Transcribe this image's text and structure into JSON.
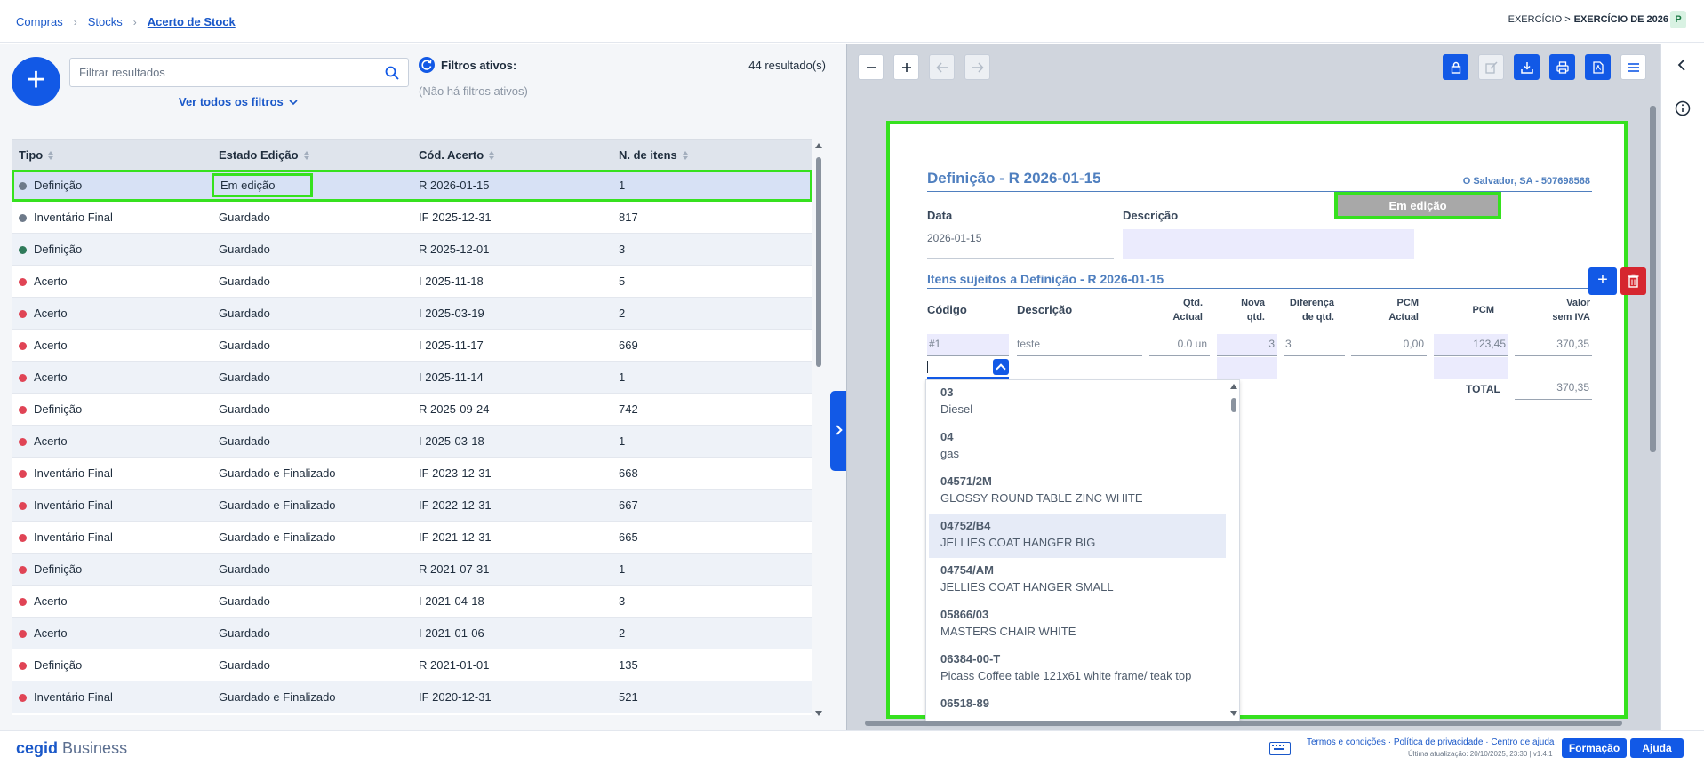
{
  "breadcrumb": {
    "items": [
      "Compras",
      "Stocks"
    ],
    "current": "Acerto de Stock"
  },
  "exercise": {
    "prefix": "EXERCÍCIO >",
    "value": "EXERCÍCIO DE 2026",
    "badge": "P"
  },
  "list": {
    "new_button": "+",
    "search_placeholder": "Filtrar resultados",
    "all_filters_label": "Ver todos os filtros",
    "active_filters_title": "Filtros ativos:",
    "no_filters_text": "(Não há filtros ativos)",
    "results_count": "44 resultado(s)",
    "columns": [
      "Tipo",
      "Estado Edição",
      "Cód. Acerto",
      "N. de itens"
    ],
    "rows": [
      {
        "tipo": "Definição",
        "estado": "Em edição",
        "cod": "R 2026-01-15",
        "n": "1",
        "dot": "#6e7a8a",
        "selected": true
      },
      {
        "tipo": "Inventário Final",
        "estado": "Guardado",
        "cod": "IF 2025-12-31",
        "n": "817",
        "dot": "#6e7a8a"
      },
      {
        "tipo": "Definição",
        "estado": "Guardado",
        "cod": "R 2025-12-01",
        "n": "3",
        "dot": "#2f7a5a"
      },
      {
        "tipo": "Acerto",
        "estado": "Guardado",
        "cod": "I 2025-11-18",
        "n": "5",
        "dot": "#e04455"
      },
      {
        "tipo": "Acerto",
        "estado": "Guardado",
        "cod": "I 2025-03-19",
        "n": "2",
        "dot": "#e04455"
      },
      {
        "tipo": "Acerto",
        "estado": "Guardado",
        "cod": "I 2025-11-17",
        "n": "669",
        "dot": "#e04455"
      },
      {
        "tipo": "Acerto",
        "estado": "Guardado",
        "cod": "I 2025-11-14",
        "n": "1",
        "dot": "#e04455"
      },
      {
        "tipo": "Definição",
        "estado": "Guardado",
        "cod": "R 2025-09-24",
        "n": "742",
        "dot": "#e04455"
      },
      {
        "tipo": "Acerto",
        "estado": "Guardado",
        "cod": "I 2025-03-18",
        "n": "1",
        "dot": "#e04455"
      },
      {
        "tipo": "Inventário Final",
        "estado": "Guardado e Finalizado",
        "cod": "IF 2023-12-31",
        "n": "668",
        "dot": "#e04455"
      },
      {
        "tipo": "Inventário Final",
        "estado": "Guardado e Finalizado",
        "cod": "IF 2022-12-31",
        "n": "667",
        "dot": "#e04455"
      },
      {
        "tipo": "Inventário Final",
        "estado": "Guardado e Finalizado",
        "cod": "IF 2021-12-31",
        "n": "665",
        "dot": "#e04455"
      },
      {
        "tipo": "Definição",
        "estado": "Guardado",
        "cod": "R 2021-07-31",
        "n": "1",
        "dot": "#e04455"
      },
      {
        "tipo": "Acerto",
        "estado": "Guardado",
        "cod": "I 2021-04-18",
        "n": "3",
        "dot": "#e04455"
      },
      {
        "tipo": "Acerto",
        "estado": "Guardado",
        "cod": "I 2021-01-06",
        "n": "2",
        "dot": "#e04455"
      },
      {
        "tipo": "Definição",
        "estado": "Guardado",
        "cod": "R 2021-01-01",
        "n": "135",
        "dot": "#e04455"
      },
      {
        "tipo": "Inventário Final",
        "estado": "Guardado e Finalizado",
        "cod": "IF 2020-12-31",
        "n": "521",
        "dot": "#e04455"
      }
    ]
  },
  "document": {
    "title": "Definição - R 2026-01-15",
    "company": "O Salvador, SA - 507698568",
    "status": "Em edição",
    "data_label": "Data",
    "data_value": "2026-01-15",
    "descricao_label": "Descrição",
    "items_title": "Itens sujeitos a Definição - R 2026-01-15",
    "columns": {
      "codigo": "Código",
      "descricao": "Descrição",
      "qtd_actual": [
        "Qtd.",
        "Actual"
      ],
      "nova_qtd": [
        "Nova",
        "qtd."
      ],
      "diferenca": [
        "Diferença",
        "de qtd."
      ],
      "pcm_actual": [
        "PCM",
        "Actual"
      ],
      "pcm": "PCM",
      "valor": [
        "Valor",
        "sem IVA"
      ]
    },
    "line": {
      "codigo": "#1",
      "descricao": "teste",
      "qtd_actual": "0.0 un",
      "nova_qtd": "3",
      "diferenca": "3",
      "pcm_actual": "0,00",
      "pcm": "123,45",
      "valor": "370,35"
    },
    "add_line_label": "+",
    "total_label": "TOTAL",
    "total_value": "370,35",
    "dropdown": [
      {
        "code": "03",
        "name": "Diesel"
      },
      {
        "code": "04",
        "name": "gas"
      },
      {
        "code": "04571/2M",
        "name": "GLOSSY ROUND TABLE ZINC WHITE"
      },
      {
        "code": "04752/B4",
        "name": "JELLIES COAT HANGER BIG",
        "hover": true
      },
      {
        "code": "04754/AM",
        "name": "JELLIES COAT HANGER SMALL"
      },
      {
        "code": "05866/03",
        "name": "MASTERS CHAIR WHITE"
      },
      {
        "code": "06384-00-T",
        "name": "Picass Coffee table 121x61 white frame/ teak top"
      },
      {
        "code": "06518-89",
        "name": ""
      }
    ]
  },
  "footer": {
    "brand_bold": "cegid",
    "brand_rest": "Business",
    "links": "Termos e condições · Política de privacidade · Centro de ajuda",
    "updated": "Última atualização: 20/10/2025, 23:30 | v1.4.1",
    "formacao": "Formação",
    "ajuda": "Ajuda"
  },
  "colors": {
    "accent": "#1259e6",
    "highlight": "#36e11f",
    "danger": "#d6262f"
  }
}
